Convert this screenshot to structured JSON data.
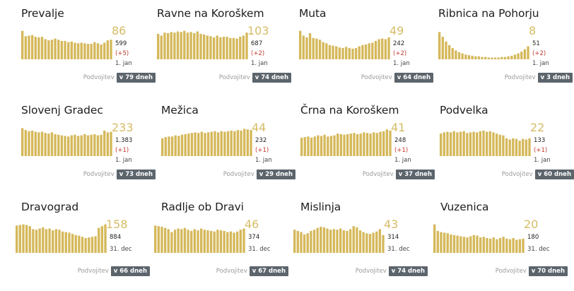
{
  "colors": {
    "bar": "#d5b85a",
    "number": "#d6bc66",
    "delta": "#c0392b",
    "badge": "#5c646c"
  },
  "municipalities": [
    {
      "name": "Prevalje",
      "active": "86",
      "total": "599",
      "delta": "(+5)",
      "date": "1. jan",
      "doubling_label": "Podvojitev",
      "doubling": "v 79 dneh",
      "chart_data": {
        "type": "bar",
        "values": [
          96,
          78,
          80,
          82,
          76,
          74,
          76,
          68,
          64,
          66,
          70,
          66,
          62,
          62,
          58,
          60,
          56,
          54,
          56,
          54,
          52,
          52,
          58,
          54,
          50,
          56,
          64,
          66
        ]
      }
    },
    {
      "name": "Ravne na Koroškem",
      "active": "103",
      "total": "687",
      "delta": "(+2)",
      "date": "1. jan",
      "doubling_label": "Podvojitev",
      "doubling": "v 74 dneh",
      "chart_data": {
        "type": "bar",
        "values": [
          86,
          80,
          90,
          88,
          92,
          90,
          94,
          92,
          96,
          90,
          92,
          88,
          94,
          86,
          84,
          80,
          78,
          74,
          80,
          74,
          76,
          76,
          72,
          72,
          70,
          76,
          80,
          90
        ]
      }
    },
    {
      "name": "Muta",
      "active": "49",
      "total": "242",
      "delta": "(+2)",
      "date": "1. jan",
      "doubling_label": "Podvojitev",
      "doubling": "v 64 dneh",
      "chart_data": {
        "type": "bar",
        "values": [
          96,
          80,
          74,
          88,
          72,
          70,
          66,
          58,
          54,
          48,
          46,
          44,
          40,
          38,
          42,
          38,
          36,
          38,
          44,
          48,
          50,
          54,
          56,
          62,
          68,
          70,
          68,
          74
        ]
      }
    },
    {
      "name": "Ribnica na Pohorju",
      "active": "8",
      "total": "51",
      "delta": "(+2)",
      "date": "1. jan",
      "doubling_label": "Podvojitev",
      "doubling": "v 3 dneh",
      "chart_data": {
        "type": "bar",
        "values": [
          92,
          76,
          60,
          48,
          38,
          30,
          24,
          20,
          16,
          14,
          12,
          10,
          10,
          8,
          8,
          6,
          6,
          6,
          6,
          8,
          8,
          10,
          12,
          16,
          20,
          26,
          34,
          44
        ]
      }
    },
    {
      "name": "Slovenj Gradec",
      "active": "233",
      "total": "1.383",
      "delta": "(+1)",
      "date": "1. jan",
      "doubling_label": "Podvojitev",
      "doubling": "v 73 dneh",
      "chart_data": {
        "type": "bar",
        "values": [
          94,
          88,
          84,
          86,
          82,
          80,
          82,
          78,
          76,
          80,
          74,
          72,
          70,
          68,
          66,
          70,
          72,
          68,
          70,
          74,
          70,
          72,
          74,
          70,
          72,
          86,
          80,
          82
        ]
      }
    },
    {
      "name": "Mežica",
      "active": "44",
      "total": "232",
      "delta": "(+1)",
      "date": "1. jan",
      "doubling_label": "Podvojitev",
      "doubling": "v 29 dneh",
      "chart_data": {
        "type": "bar",
        "values": [
          60,
          64,
          66,
          66,
          70,
          68,
          72,
          74,
          76,
          78,
          80,
          78,
          82,
          78,
          80,
          82,
          84,
          80,
          84,
          82,
          84,
          86,
          84,
          88,
          86,
          92,
          90,
          88
        ]
      }
    },
    {
      "name": "Črna na Koroškem",
      "active": "41",
      "total": "248",
      "delta": "(+1)",
      "date": "1. jan",
      "doubling_label": "Podvojitev",
      "doubling": "v 37 dneh",
      "chart_data": {
        "type": "bar",
        "values": [
          62,
          64,
          66,
          62,
          66,
          70,
          68,
          72,
          66,
          68,
          70,
          76,
          74,
          72,
          74,
          76,
          78,
          74,
          76,
          80,
          78,
          76,
          80,
          78,
          82,
          84,
          90,
          86
        ]
      }
    },
    {
      "name": "Podvelka",
      "active": "22",
      "total": "133",
      "delta": "(+1)",
      "date": "1. jan",
      "doubling_label": "Podvojitev",
      "doubling": "v 60 dneh",
      "chart_data": {
        "type": "bar",
        "values": [
          76,
          80,
          82,
          80,
          84,
          80,
          82,
          84,
          78,
          80,
          82,
          80,
          84,
          86,
          82,
          84,
          80,
          76,
          72,
          70,
          60,
          56,
          60,
          58,
          52,
          58,
          56,
          60
        ]
      }
    },
    {
      "name": "Dravograd",
      "active": "158",
      "total": "884",
      "delta": "",
      "date": "31. dec",
      "doubling_label": "Podvojitev",
      "doubling": "v 66 dneh",
      "chart_data": {
        "type": "bar",
        "values": [
          92,
          94,
          96,
          94,
          90,
          80,
          78,
          82,
          86,
          80,
          82,
          76,
          80,
          78,
          72,
          70,
          68,
          64,
          60,
          58,
          54,
          50,
          52,
          54,
          56,
          84,
          90,
          96
        ]
      }
    },
    {
      "name": "Radlje ob Dravi",
      "active": "46",
      "total": "374",
      "delta": "",
      "date": "31. dec",
      "doubling_label": "Podvojitev",
      "doubling": "v 67 dneh",
      "chart_data": {
        "type": "bar",
        "values": [
          92,
          90,
          88,
          84,
          80,
          70,
          78,
          82,
          80,
          84,
          78,
          74,
          80,
          76,
          82,
          78,
          76,
          74,
          72,
          78,
          76,
          74,
          70,
          72,
          68,
          72,
          78,
          82
        ]
      }
    },
    {
      "name": "Mislinja",
      "active": "43",
      "total": "314",
      "delta": "",
      "date": "31. dec",
      "doubling_label": "Podvojitev",
      "doubling": "v 74 dneh",
      "chart_data": {
        "type": "bar",
        "values": [
          78,
          74,
          70,
          62,
          66,
          74,
          78,
          84,
          88,
          86,
          82,
          78,
          80,
          78,
          82,
          76,
          74,
          80,
          90,
          86,
          76,
          70,
          66,
          64,
          68,
          72,
          80,
          60
        ]
      }
    },
    {
      "name": "Vuzenica",
      "active": "20",
      "total": "180",
      "delta": "",
      "date": "31. dec",
      "doubling_label": "Podvojitev",
      "doubling": "v 70 dneh",
      "chart_data": {
        "type": "bar",
        "values": [
          96,
          74,
          70,
          68,
          66,
          62,
          60,
          58,
          56,
          54,
          52,
          56,
          60,
          58,
          52,
          54,
          50,
          48,
          52,
          46,
          50,
          54,
          48,
          46,
          50,
          44,
          46,
          48
        ]
      }
    }
  ]
}
